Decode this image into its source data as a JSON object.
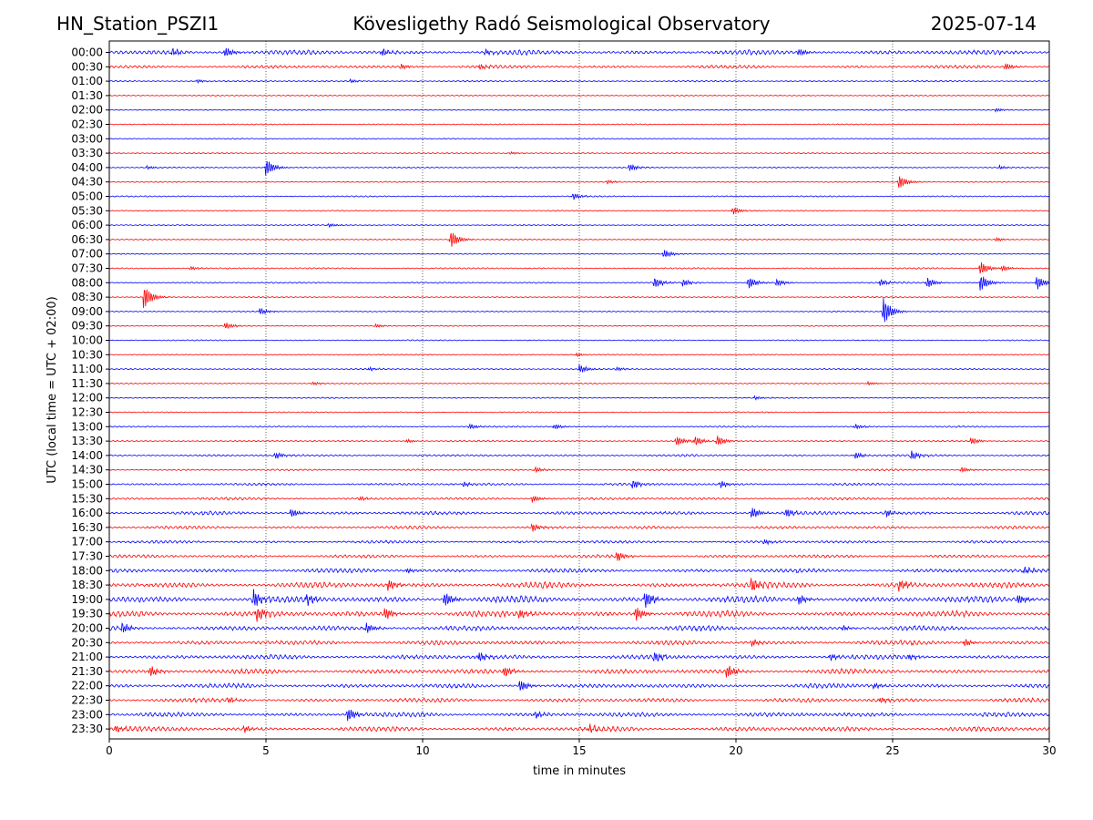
{
  "header": {
    "station": "HN_Station_PSZI1",
    "observatory": "Kövesligethy Radó Seismological Observatory",
    "date": "2025-07-14"
  },
  "chart_data": {
    "type": "line",
    "title": "Kövesligethy Radó Seismological Observatory",
    "xlabel": "time in minutes",
    "ylabel": "UTC (local time = UTC + 02:00)",
    "xlim": [
      0,
      30
    ],
    "xticks": [
      0,
      5,
      10,
      15,
      20,
      25,
      30
    ],
    "grid": "vertical dotted at 5-minute intervals",
    "colors": [
      "#0000ff",
      "#ff0000"
    ],
    "rows": [
      {
        "label": "00:00",
        "color": "blue",
        "activity": 2.2,
        "events": [
          [
            2.0,
            4
          ],
          [
            3.7,
            6
          ],
          [
            8.7,
            4
          ],
          [
            12.0,
            3
          ],
          [
            22.0,
            4
          ]
        ]
      },
      {
        "label": "00:30",
        "color": "red",
        "activity": 1.4,
        "events": [
          [
            9.3,
            3
          ],
          [
            11.8,
            3
          ],
          [
            28.6,
            4
          ]
        ]
      },
      {
        "label": "01:00",
        "color": "blue",
        "activity": 0.5,
        "events": [
          [
            2.8,
            2
          ],
          [
            7.7,
            2
          ]
        ]
      },
      {
        "label": "01:30",
        "color": "red",
        "activity": 0.3,
        "events": []
      },
      {
        "label": "02:00",
        "color": "blue",
        "activity": 0.3,
        "events": [
          [
            28.3,
            2
          ]
        ]
      },
      {
        "label": "02:30",
        "color": "red",
        "activity": 0.3,
        "events": []
      },
      {
        "label": "03:00",
        "color": "blue",
        "activity": 0.3,
        "events": []
      },
      {
        "label": "03:30",
        "color": "red",
        "activity": 0.3,
        "events": [
          [
            12.8,
            1.5
          ]
        ]
      },
      {
        "label": "04:00",
        "color": "blue",
        "activity": 0.3,
        "events": [
          [
            1.2,
            2
          ],
          [
            5.0,
            10
          ],
          [
            16.6,
            4
          ],
          [
            28.4,
            2
          ]
        ]
      },
      {
        "label": "04:30",
        "color": "red",
        "activity": 0.3,
        "events": [
          [
            15.9,
            2
          ],
          [
            25.2,
            8
          ]
        ]
      },
      {
        "label": "05:00",
        "color": "blue",
        "activity": 0.4,
        "events": [
          [
            14.8,
            4
          ]
        ]
      },
      {
        "label": "05:30",
        "color": "red",
        "activity": 0.3,
        "events": [
          [
            19.9,
            4
          ]
        ]
      },
      {
        "label": "06:00",
        "color": "blue",
        "activity": 0.3,
        "events": [
          [
            7.0,
            2
          ]
        ]
      },
      {
        "label": "06:30",
        "color": "red",
        "activity": 0.3,
        "events": [
          [
            10.9,
            10
          ],
          [
            28.3,
            2
          ]
        ]
      },
      {
        "label": "07:00",
        "color": "blue",
        "activity": 0.3,
        "events": [
          [
            17.7,
            5
          ]
        ]
      },
      {
        "label": "07:30",
        "color": "red",
        "activity": 0.5,
        "events": [
          [
            2.6,
            2
          ],
          [
            27.8,
            8
          ],
          [
            28.5,
            3
          ]
        ]
      },
      {
        "label": "08:00",
        "color": "blue",
        "activity": 0.5,
        "events": [
          [
            17.4,
            6
          ],
          [
            18.3,
            4
          ],
          [
            20.4,
            7
          ],
          [
            21.3,
            4
          ],
          [
            24.6,
            4
          ],
          [
            26.1,
            6
          ],
          [
            27.8,
            10
          ],
          [
            29.6,
            8
          ]
        ]
      },
      {
        "label": "08:30",
        "color": "red",
        "activity": 0.3,
        "events": [
          [
            1.1,
            14
          ]
        ]
      },
      {
        "label": "09:00",
        "color": "blue",
        "activity": 0.3,
        "events": [
          [
            4.8,
            4
          ],
          [
            24.7,
            16
          ]
        ]
      },
      {
        "label": "09:30",
        "color": "red",
        "activity": 0.3,
        "events": [
          [
            3.7,
            4
          ],
          [
            8.5,
            2
          ]
        ]
      },
      {
        "label": "10:00",
        "color": "blue",
        "activity": 0.3,
        "events": []
      },
      {
        "label": "10:30",
        "color": "red",
        "activity": 0.3,
        "events": [
          [
            14.9,
            2
          ]
        ]
      },
      {
        "label": "11:00",
        "color": "blue",
        "activity": 0.4,
        "events": [
          [
            8.3,
            2
          ],
          [
            15.0,
            5
          ],
          [
            16.2,
            2
          ]
        ]
      },
      {
        "label": "11:30",
        "color": "red",
        "activity": 0.3,
        "events": [
          [
            6.5,
            2
          ],
          [
            24.2,
            2
          ]
        ]
      },
      {
        "label": "12:00",
        "color": "blue",
        "activity": 0.3,
        "events": [
          [
            20.6,
            2
          ]
        ]
      },
      {
        "label": "12:30",
        "color": "red",
        "activity": 0.3,
        "events": []
      },
      {
        "label": "13:00",
        "color": "blue",
        "activity": 0.5,
        "events": [
          [
            11.5,
            3
          ],
          [
            14.2,
            3
          ],
          [
            23.8,
            3
          ]
        ]
      },
      {
        "label": "13:30",
        "color": "red",
        "activity": 0.5,
        "events": [
          [
            9.5,
            2
          ],
          [
            18.1,
            6
          ],
          [
            18.7,
            5
          ],
          [
            19.4,
            6
          ],
          [
            27.5,
            4
          ]
        ]
      },
      {
        "label": "14:00",
        "color": "blue",
        "activity": 0.8,
        "events": [
          [
            5.3,
            4
          ],
          [
            23.8,
            4
          ],
          [
            25.6,
            5
          ]
        ]
      },
      {
        "label": "14:30",
        "color": "red",
        "activity": 0.6,
        "events": [
          [
            13.6,
            3
          ],
          [
            27.2,
            3
          ]
        ]
      },
      {
        "label": "15:00",
        "color": "blue",
        "activity": 1.0,
        "events": [
          [
            11.3,
            3
          ],
          [
            16.7,
            5
          ],
          [
            19.5,
            4
          ]
        ]
      },
      {
        "label": "15:30",
        "color": "red",
        "activity": 1.1,
        "events": [
          [
            8.0,
            2
          ],
          [
            13.5,
            4
          ]
        ]
      },
      {
        "label": "16:00",
        "color": "blue",
        "activity": 1.6,
        "events": [
          [
            5.8,
            5
          ],
          [
            20.5,
            7
          ],
          [
            21.6,
            5
          ],
          [
            24.8,
            4
          ]
        ]
      },
      {
        "label": "16:30",
        "color": "red",
        "activity": 1.3,
        "events": [
          [
            13.5,
            5
          ]
        ]
      },
      {
        "label": "17:00",
        "color": "blue",
        "activity": 1.2,
        "events": [
          [
            20.9,
            3
          ]
        ]
      },
      {
        "label": "17:30",
        "color": "red",
        "activity": 1.4,
        "events": [
          [
            16.2,
            6
          ]
        ]
      },
      {
        "label": "18:00",
        "color": "blue",
        "activity": 2.0,
        "events": [
          [
            9.5,
            3
          ],
          [
            29.2,
            4
          ]
        ]
      },
      {
        "label": "18:30",
        "color": "red",
        "activity": 2.8,
        "events": [
          [
            8.9,
            6
          ],
          [
            20.5,
            8
          ],
          [
            25.2,
            6
          ]
        ]
      },
      {
        "label": "19:00",
        "color": "blue",
        "activity": 3.2,
        "events": [
          [
            4.6,
            10
          ],
          [
            6.3,
            6
          ],
          [
            10.7,
            9
          ],
          [
            17.1,
            10
          ],
          [
            22.0,
            6
          ],
          [
            29.0,
            6
          ]
        ]
      },
      {
        "label": "19:30",
        "color": "red",
        "activity": 3.0,
        "events": [
          [
            4.7,
            8
          ],
          [
            8.8,
            7
          ],
          [
            13.1,
            6
          ],
          [
            16.8,
            8
          ]
        ]
      },
      {
        "label": "20:00",
        "color": "blue",
        "activity": 2.4,
        "events": [
          [
            0.4,
            6
          ],
          [
            8.2,
            6
          ],
          [
            23.4,
            3
          ]
        ]
      },
      {
        "label": "20:30",
        "color": "red",
        "activity": 2.2,
        "events": [
          [
            20.5,
            4
          ],
          [
            27.3,
            4
          ]
        ]
      },
      {
        "label": "21:00",
        "color": "blue",
        "activity": 2.2,
        "events": [
          [
            11.8,
            6
          ],
          [
            17.4,
            6
          ],
          [
            23.0,
            4
          ],
          [
            25.5,
            4
          ]
        ]
      },
      {
        "label": "21:30",
        "color": "red",
        "activity": 2.4,
        "events": [
          [
            1.3,
            6
          ],
          [
            12.6,
            6
          ],
          [
            19.7,
            7
          ]
        ]
      },
      {
        "label": "22:00",
        "color": "blue",
        "activity": 2.2,
        "events": [
          [
            13.1,
            7
          ],
          [
            24.4,
            3
          ]
        ]
      },
      {
        "label": "22:30",
        "color": "red",
        "activity": 2.0,
        "events": [
          [
            3.8,
            3
          ],
          [
            24.6,
            3
          ]
        ]
      },
      {
        "label": "23:00",
        "color": "blue",
        "activity": 2.2,
        "events": [
          [
            7.6,
            8
          ],
          [
            13.6,
            4
          ]
        ]
      },
      {
        "label": "23:30",
        "color": "red",
        "activity": 2.3,
        "events": [
          [
            0.2,
            4
          ],
          [
            4.3,
            4
          ],
          [
            15.3,
            4
          ]
        ]
      }
    ]
  }
}
